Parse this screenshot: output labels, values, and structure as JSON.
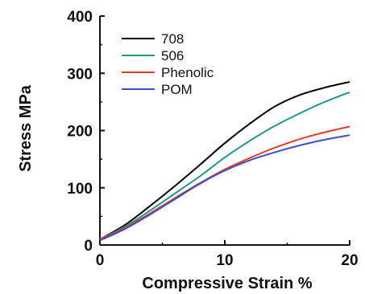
{
  "chart_data": {
    "type": "line",
    "title": "",
    "xlabel": "Compressive Strain %",
    "ylabel": "Stress MPa",
    "xlim": [
      0,
      20
    ],
    "ylim": [
      0,
      400
    ],
    "x_ticks": [
      0,
      10,
      20
    ],
    "y_ticks": [
      0,
      100,
      200,
      300,
      400
    ],
    "legend_position": "top-left",
    "grid": false,
    "x": [
      0,
      2,
      4,
      6,
      8,
      10,
      12,
      14,
      16,
      18,
      20
    ],
    "series": [
      {
        "name": "708",
        "color": "#000000",
        "values": [
          10,
          35,
          68,
          103,
          140,
          178,
          212,
          242,
          262,
          275,
          285
        ]
      },
      {
        "name": "506",
        "color": "#1a9a8a",
        "values": [
          10,
          32,
          60,
          90,
          120,
          153,
          182,
          208,
          230,
          250,
          267
        ]
      },
      {
        "name": "Phenolic",
        "color": "#e8382a",
        "values": [
          10,
          30,
          55,
          82,
          108,
          132,
          152,
          170,
          185,
          197,
          207
        ]
      },
      {
        "name": "POM",
        "color": "#3a4fd0",
        "values": [
          8,
          28,
          53,
          80,
          107,
          130,
          148,
          162,
          174,
          184,
          192
        ]
      }
    ]
  }
}
